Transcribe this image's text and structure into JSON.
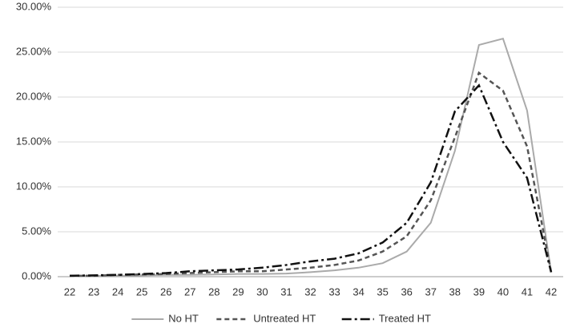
{
  "chart_data": {
    "type": "line",
    "categories": [
      22,
      23,
      24,
      25,
      26,
      27,
      28,
      29,
      30,
      31,
      32,
      33,
      34,
      35,
      36,
      37,
      38,
      39,
      40,
      41,
      42
    ],
    "series": [
      {
        "name": "No HT",
        "color": "#aaaaaa",
        "dash": "solid",
        "values": [
          0.1,
          0.1,
          0.1,
          0.15,
          0.2,
          0.2,
          0.25,
          0.3,
          0.3,
          0.35,
          0.5,
          0.7,
          1.0,
          1.5,
          2.8,
          6.0,
          14.0,
          25.8,
          26.5,
          18.5,
          0.5
        ]
      },
      {
        "name": "Untreated HT",
        "color": "#555555",
        "dash": "dashed",
        "values": [
          0.1,
          0.1,
          0.2,
          0.25,
          0.3,
          0.4,
          0.5,
          0.6,
          0.6,
          0.8,
          1.0,
          1.3,
          1.8,
          2.8,
          4.5,
          8.5,
          15.5,
          22.7,
          20.7,
          14.5,
          0.5
        ]
      },
      {
        "name": "Treated HT",
        "color": "#111111",
        "dash": "dashdot",
        "values": [
          0.1,
          0.15,
          0.2,
          0.3,
          0.4,
          0.6,
          0.7,
          0.8,
          1.0,
          1.3,
          1.7,
          2.0,
          2.6,
          3.8,
          6.0,
          10.5,
          18.4,
          21.3,
          15.0,
          11.0,
          0.5
        ]
      }
    ],
    "ylim": [
      0,
      30
    ],
    "yticks": [
      {
        "value": 0,
        "label": "0.00%"
      },
      {
        "value": 5,
        "label": "5.00%"
      },
      {
        "value": 10,
        "label": "10.00%"
      },
      {
        "value": 15,
        "label": "15.00%"
      },
      {
        "value": 20,
        "label": "20.00%"
      },
      {
        "value": 25,
        "label": "25.00%"
      },
      {
        "value": 30,
        "label": "30.00%"
      }
    ],
    "grid": true,
    "legend": "bottom"
  }
}
